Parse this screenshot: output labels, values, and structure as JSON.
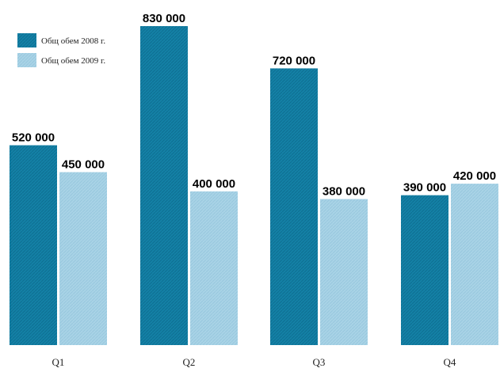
{
  "chart_data": {
    "type": "bar",
    "title": "",
    "xlabel": "",
    "ylabel": "",
    "categories": [
      "Q1",
      "Q2",
      "Q3",
      "Q4"
    ],
    "series": [
      {
        "name": "Общ обем 2008 г.",
        "values": [
          520000,
          830000,
          720000,
          390000
        ],
        "labels": [
          "520 000",
          "830 000",
          "720 000",
          "390 000"
        ],
        "color": "#1481a6"
      },
      {
        "name": "Общ обем 2009 г.",
        "values": [
          450000,
          400000,
          380000,
          420000
        ],
        "labels": [
          "450 000",
          "400 000",
          "380 000",
          "420 000"
        ],
        "color": "#a9d3e6"
      }
    ],
    "ylim": [
      0,
      830000
    ],
    "grid": false,
    "legend_position": "top-left"
  }
}
